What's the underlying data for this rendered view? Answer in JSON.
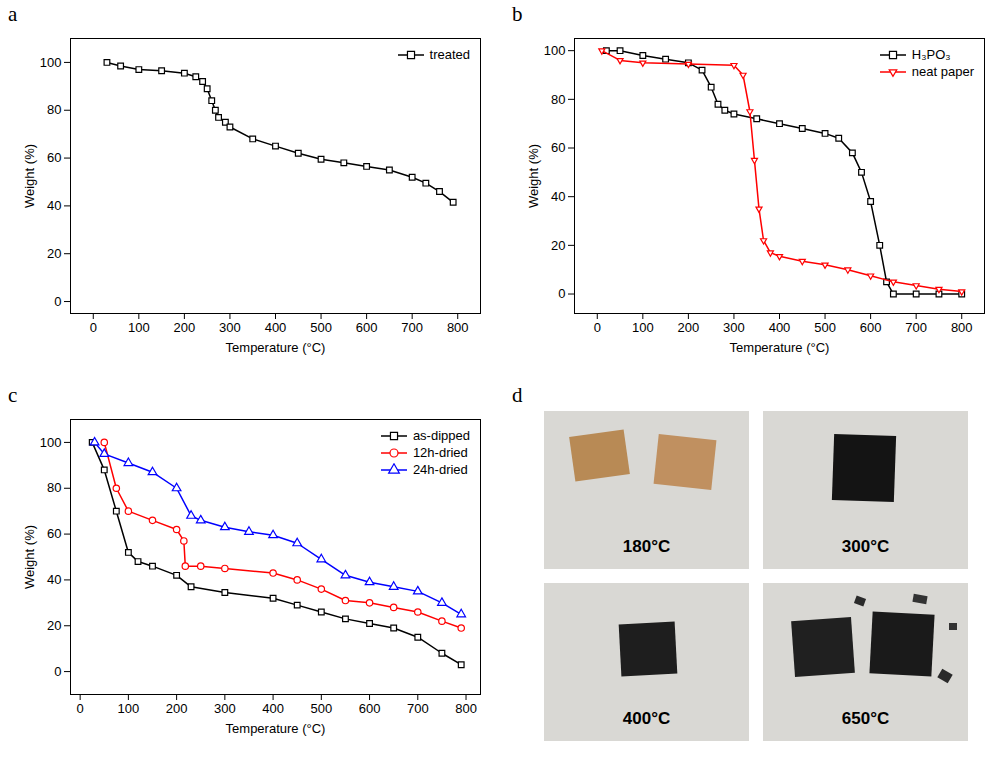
{
  "chart_data": [
    {
      "panel": "a",
      "type": "line",
      "x_label": "Temperature (°C)",
      "y_label": "Weight (%)",
      "xlim": [
        -50,
        850
      ],
      "xticks": [
        0,
        100,
        200,
        300,
        400,
        500,
        600,
        700,
        800
      ],
      "ylim": [
        -5,
        110
      ],
      "yticks": [
        0,
        20,
        40,
        60,
        80,
        100
      ],
      "legend": "upper right",
      "series": [
        {
          "name": "treated",
          "color": "#000000",
          "marker": "square",
          "x": [
            30,
            60,
            100,
            150,
            200,
            225,
            240,
            250,
            260,
            268,
            275,
            290,
            300,
            350,
            400,
            450,
            500,
            550,
            600,
            650,
            700,
            730,
            760,
            790
          ],
          "values": [
            100,
            98.5,
            97,
            96.5,
            95.5,
            94,
            92,
            89,
            84,
            80,
            77,
            75,
            73,
            68,
            65,
            62,
            59.5,
            58,
            56.5,
            55,
            52,
            49.5,
            46,
            41.5
          ]
        }
      ]
    },
    {
      "panel": "b",
      "type": "line",
      "x_label": "Temperature (°C)",
      "y_label": "Weight (%)",
      "xlim": [
        -50,
        850
      ],
      "xticks": [
        0,
        100,
        200,
        300,
        400,
        500,
        600,
        700,
        800
      ],
      "ylim": [
        -8,
        105
      ],
      "yticks": [
        0,
        20,
        40,
        60,
        80,
        100
      ],
      "legend": "upper right",
      "series": [
        {
          "name": "H₃PO₃",
          "color": "#000000",
          "marker": "square",
          "x": [
            20,
            50,
            100,
            150,
            200,
            230,
            250,
            265,
            280,
            300,
            350,
            400,
            450,
            500,
            530,
            560,
            580,
            600,
            620,
            635,
            650,
            700,
            750,
            800
          ],
          "values": [
            100,
            100,
            98,
            96.5,
            95,
            92,
            85,
            78,
            75.5,
            74,
            72,
            70,
            68,
            66,
            64,
            58,
            50,
            38,
            20,
            5,
            0,
            0,
            0,
            0
          ]
        },
        {
          "name": "neat paper",
          "color": "#ff0000",
          "marker": "triangle-down",
          "x": [
            10,
            50,
            100,
            200,
            300,
            320,
            335,
            345,
            355,
            365,
            380,
            400,
            450,
            500,
            550,
            600,
            650,
            700,
            750,
            800
          ],
          "values": [
            100,
            96,
            95,
            94.5,
            94,
            90,
            75,
            55,
            35,
            22,
            17,
            15.5,
            13.5,
            12,
            10,
            7.5,
            5,
            3.5,
            2,
            1
          ]
        }
      ]
    },
    {
      "panel": "c",
      "type": "line",
      "x_label": "Temperature (°C)",
      "y_label": "Weight (%)",
      "xlim": [
        -20,
        830
      ],
      "xticks": [
        0,
        100,
        200,
        300,
        400,
        500,
        600,
        700,
        800
      ],
      "ylim": [
        -10,
        110
      ],
      "yticks": [
        0,
        20,
        40,
        60,
        80,
        100
      ],
      "legend": "upper right",
      "series": [
        {
          "name": "as-dipped",
          "color": "#000000",
          "marker": "square",
          "x": [
            25,
            50,
            75,
            100,
            120,
            150,
            200,
            230,
            300,
            400,
            450,
            500,
            550,
            600,
            650,
            700,
            750,
            790
          ],
          "values": [
            100,
            88,
            70,
            52,
            48,
            46,
            42,
            37,
            34.5,
            32,
            29,
            26,
            23,
            21,
            19,
            15,
            8,
            3
          ]
        },
        {
          "name": "12h-dried",
          "color": "#ff0000",
          "marker": "circle",
          "x": [
            50,
            75,
            100,
            150,
            200,
            215,
            218,
            250,
            300,
            400,
            450,
            500,
            550,
            600,
            650,
            700,
            750,
            790
          ],
          "values": [
            100,
            80,
            70,
            66,
            62,
            57,
            46,
            46,
            45,
            43,
            40,
            36,
            31,
            30,
            28,
            26,
            22,
            19
          ]
        },
        {
          "name": "24h-dried",
          "color": "#0000ff",
          "marker": "triangle-up",
          "x": [
            30,
            50,
            100,
            150,
            200,
            230,
            250,
            300,
            350,
            400,
            450,
            500,
            550,
            600,
            650,
            700,
            750,
            790
          ],
          "values": [
            100,
            95,
            91,
            87,
            80,
            68,
            66,
            63,
            61,
            59.5,
            56,
            49,
            42,
            39,
            37,
            35,
            30,
            25
          ]
        }
      ]
    }
  ],
  "photos": {
    "panel": "d",
    "labels": [
      "180°C",
      "300°C",
      "400°C",
      "650°C"
    ]
  }
}
